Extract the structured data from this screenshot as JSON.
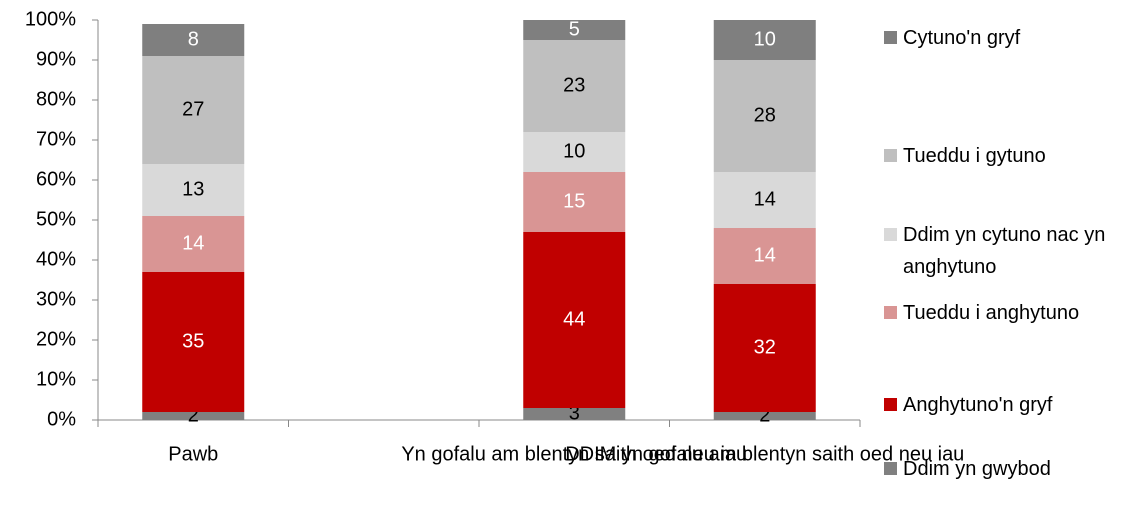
{
  "chart_data": {
    "type": "stacked_bar",
    "categories": [
      "Pawb",
      null,
      "Yn gofalu am blentyn saith oed neu iau",
      "DDIM yn gofalu am blentyn saith oed neu iau"
    ],
    "series": [
      {
        "name": "Ddim yn gwybod",
        "color": "#808080",
        "values": [
          2,
          null,
          3,
          2
        ]
      },
      {
        "name": "Anghytuno'n gryf",
        "color": "#c00000",
        "values": [
          35,
          null,
          44,
          32
        ]
      },
      {
        "name": "Tueddu i anghytuno",
        "color": "#d99594",
        "values": [
          14,
          null,
          15,
          14
        ]
      },
      {
        "name": "Ddim yn cytuno nac yn anghytuno",
        "color": "#d9d9d9",
        "values": [
          13,
          null,
          10,
          14
        ]
      },
      {
        "name": "Tueddu i gytuno",
        "color": "#bfbfbf",
        "values": [
          27,
          null,
          23,
          28
        ]
      },
      {
        "name": "Cytuno'n gryf",
        "color": "#7f7f7f",
        "values": [
          8,
          null,
          5,
          10
        ]
      }
    ],
    "ylim": [
      0,
      100
    ],
    "yticks": [
      {
        "value": 0,
        "label": "0%"
      },
      {
        "value": 10,
        "label": "10%"
      },
      {
        "value": 20,
        "label": "20%"
      },
      {
        "value": 30,
        "label": "30%"
      },
      {
        "value": 40,
        "label": "40%"
      },
      {
        "value": 50,
        "label": "50%"
      },
      {
        "value": 60,
        "label": "60%"
      },
      {
        "value": 70,
        "label": "70%"
      },
      {
        "value": 80,
        "label": "80%"
      },
      {
        "value": 90,
        "label": "90%"
      },
      {
        "value": 100,
        "label": "100%"
      }
    ],
    "legend": "right"
  }
}
